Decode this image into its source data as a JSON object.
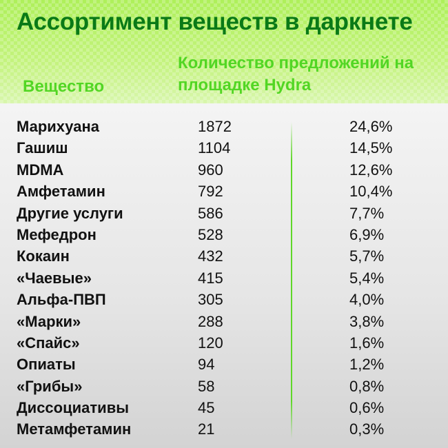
{
  "chart_data": {
    "type": "table",
    "title": "Ассортимент веществ в даркнете",
    "columns": [
      "Вещество",
      "Количество предложений на площадке Hydra"
    ],
    "rows": [
      {
        "name": "Марихуана",
        "count": "1872",
        "percent": "24,6%"
      },
      {
        "name": "Гашиш",
        "count": "1104",
        "percent": "14,5%"
      },
      {
        "name": "MDMA",
        "count": "960",
        "percent": "12,6%"
      },
      {
        "name": "Амфетамин",
        "count": "792",
        "percent": "10,4%"
      },
      {
        "name": "Другие услуги",
        "count": "586",
        "percent": "7,7%"
      },
      {
        "name": "Мефедрон",
        "count": "528",
        "percent": "6,9%"
      },
      {
        "name": "Кокаин",
        "count": "432",
        "percent": "5,7%"
      },
      {
        "name": "«Чаевые»",
        "count": "415",
        "percent": "5,4%"
      },
      {
        "name": "Альфа-ПВП",
        "count": "305",
        "percent": "4,0%"
      },
      {
        "name": "«Марки»",
        "count": "288",
        "percent": "3,8%"
      },
      {
        "name": "«Спайс»",
        "count": "120",
        "percent": "1,6%"
      },
      {
        "name": "Опиаты",
        "count": "94",
        "percent": "1,2%"
      },
      {
        "name": "«Грибы»",
        "count": "58",
        "percent": "0,8%"
      },
      {
        "name": "Диссоциативы",
        "count": "45",
        "percent": "0,6%"
      },
      {
        "name": "Метамфетамин",
        "count": "21",
        "percent": "0,3%"
      }
    ]
  },
  "colors": {
    "title": "#0a7a17",
    "column_labels": "#52d624",
    "divider": "#5fd728",
    "header_background": "#b6f06a"
  }
}
